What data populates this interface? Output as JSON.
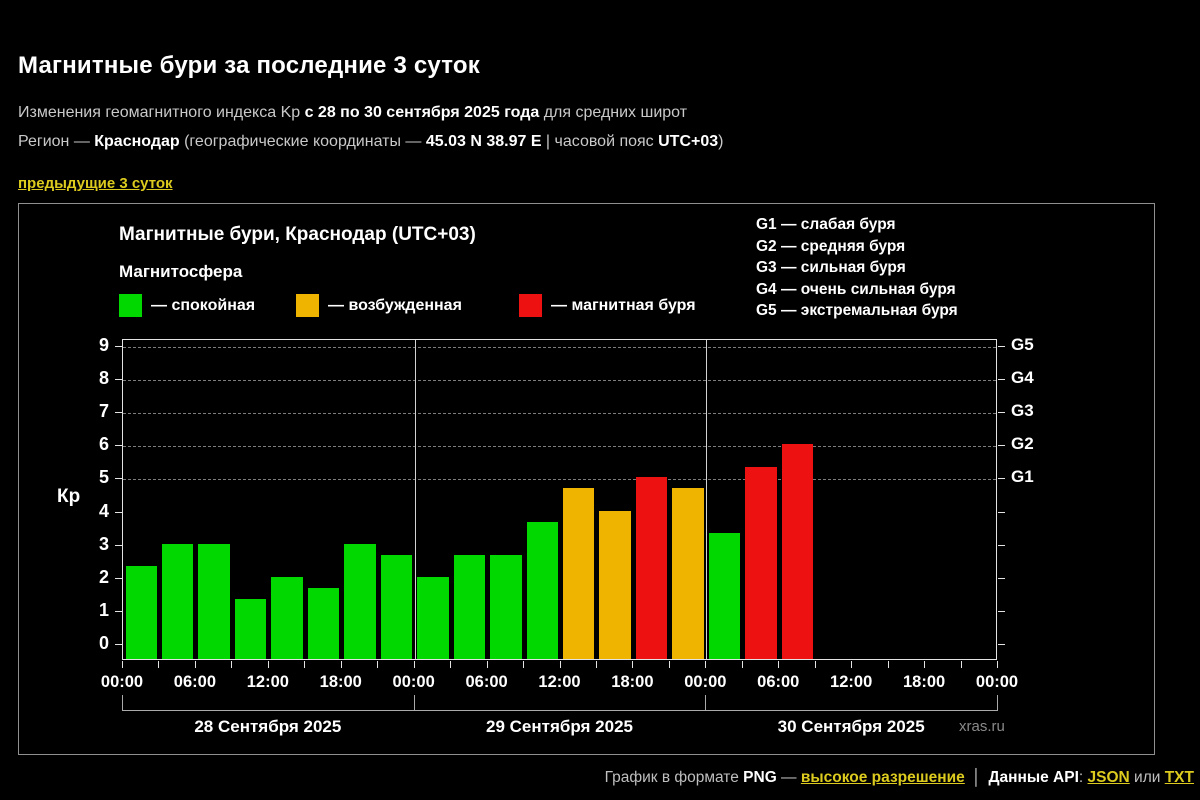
{
  "header": {
    "title": "Магнитные бури за последние 3 суток",
    "subtitle1": {
      "t1": "Изменения геомагнитного индекса Kp ",
      "b1": "с 28 по 30 сентября 2025 года",
      "t2": " для средних широт"
    },
    "subtitle2": {
      "t1": "Регион — ",
      "b1": "Краснодар",
      "t2": " (географические координаты — ",
      "b2": "45.03 N 38.97 E",
      "t3": " | часовой пояс ",
      "b3": "UTC+03",
      "t4": ")"
    },
    "prev_link": "предыдущие 3 суток"
  },
  "panel": {
    "chart_title": "Магнитные бури, Краснодар (UTC+03)",
    "magnetosphere_label": "Магнитосфера",
    "legend": [
      {
        "key": "quiet",
        "label": "— спокойная",
        "color": "#00d800"
      },
      {
        "key": "excited",
        "label": "— возбужденная",
        "color": "#eeb400"
      },
      {
        "key": "storm",
        "label": "— магнитная буря",
        "color": "#ee1111"
      }
    ],
    "g_legend": [
      "G1 — слабая буря",
      "G2 — средняя буря",
      "G3 — сильная буря",
      "G4 — очень сильная буря",
      "G5 — экстремальная буря"
    ],
    "watermark": "xras.ru"
  },
  "chart_data": {
    "type": "bar",
    "title": "Магнитные бури, Краснодар (UTC+03)",
    "ylabel": "Кр",
    "ylim": [
      0,
      9
    ],
    "grid": "dashed horizontal at Kp 5-9 only",
    "y_ticks": [
      0,
      1,
      2,
      3,
      4,
      5,
      6,
      7,
      8,
      9
    ],
    "gridline_levels": [
      5,
      6,
      7,
      8,
      9
    ],
    "right_axis_labels": [
      {
        "kp": 5,
        "label": "G1"
      },
      {
        "kp": 6,
        "label": "G2"
      },
      {
        "kp": 7,
        "label": "G3"
      },
      {
        "kp": 8,
        "label": "G4"
      },
      {
        "kp": 9,
        "label": "G5"
      }
    ],
    "x_tick_labels": [
      "00:00",
      "06:00",
      "12:00",
      "18:00",
      "00:00",
      "06:00",
      "12:00",
      "18:00",
      "00:00",
      "06:00",
      "12:00",
      "18:00",
      "00:00"
    ],
    "slots_per_day": 8,
    "slot_hours": 3,
    "days": [
      {
        "date": "28 Сентября 2025",
        "values": [
          2.33,
          3.0,
          3.0,
          1.33,
          2.0,
          1.67,
          3.0,
          2.67
        ]
      },
      {
        "date": "29 Сентября 2025",
        "values": [
          2.0,
          2.67,
          2.67,
          3.67,
          4.67,
          4.0,
          5.0,
          4.67
        ]
      },
      {
        "date": "30 Сентября 2025",
        "values": [
          3.33,
          5.33,
          6.0
        ]
      }
    ],
    "color_rules": {
      "quiet_below": 4,
      "storm_from": 5
    },
    "colors": {
      "quiet": "#00d800",
      "excited": "#eeb400",
      "storm": "#ee1111"
    },
    "legend_position": "top-left",
    "g_legend_position": "top-right"
  },
  "footer": {
    "t1": "График в формате ",
    "b1": "PNG",
    "t2": " — ",
    "link_hires": "высокое разрешение",
    "sep": "│",
    "b2": "Данные API",
    "t3": ": ",
    "link_json": "JSON",
    "t4": " или ",
    "link_txt": "TXT"
  }
}
